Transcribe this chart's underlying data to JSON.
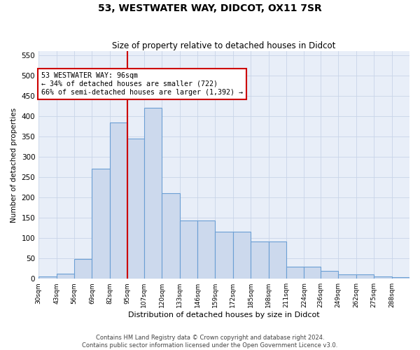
{
  "title": "53, WESTWATER WAY, DIDCOT, OX11 7SR",
  "subtitle": "Size of property relative to detached houses in Didcot",
  "xlabel": "Distribution of detached houses by size in Didcot",
  "ylabel": "Number of detached properties",
  "footer_line1": "Contains HM Land Registry data © Crown copyright and database right 2024.",
  "footer_line2": "Contains public sector information licensed under the Open Government Licence v3.0.",
  "bar_labels": [
    "30sqm",
    "43sqm",
    "56sqm",
    "69sqm",
    "82sqm",
    "95sqm",
    "107sqm",
    "120sqm",
    "133sqm",
    "146sqm",
    "159sqm",
    "172sqm",
    "185sqm",
    "198sqm",
    "211sqm",
    "224sqm",
    "236sqm",
    "249sqm",
    "262sqm",
    "275sqm",
    "288sqm"
  ],
  "bar_values": [
    5,
    12,
    48,
    270,
    385,
    345,
    420,
    210,
    143,
    143,
    115,
    115,
    91,
    91,
    30,
    30,
    19,
    10,
    11,
    5,
    3
  ],
  "bar_color": "#ccd9ed",
  "bar_edge_color": "#6b9fd4",
  "vline_x": 95,
  "vline_color": "#cc0000",
  "annotation_text": "53 WESTWATER WAY: 96sqm\n← 34% of detached houses are smaller (722)\n66% of semi-detached houses are larger (1,392) →",
  "annotation_box_color": "white",
  "annotation_box_edge": "#cc0000",
  "ylim": [
    0,
    560
  ],
  "yticks": [
    0,
    50,
    100,
    150,
    200,
    250,
    300,
    350,
    400,
    450,
    500,
    550
  ],
  "grid_color": "#c8d4e8",
  "background_color": "#e8eef8",
  "bin_edges": [
    30,
    43,
    56,
    69,
    82,
    95,
    107,
    120,
    133,
    146,
    159,
    172,
    185,
    198,
    211,
    224,
    236,
    249,
    262,
    275,
    288,
    301
  ]
}
